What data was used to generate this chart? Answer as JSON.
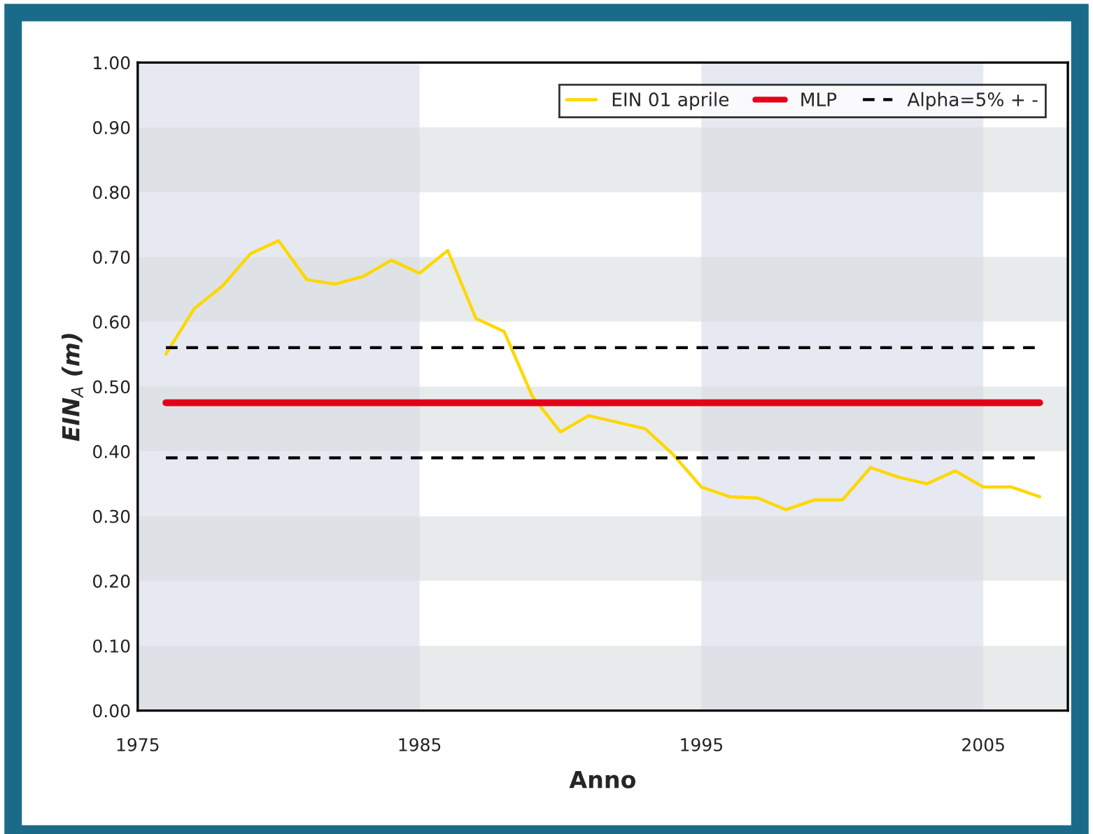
{
  "chart_data": {
    "type": "line",
    "xlabel": "Anno",
    "ylabel": "EIN$_{A}$ (m)",
    "xlim": [
      1975,
      2008
    ],
    "xticks": [
      1975,
      1985,
      1995,
      2005
    ],
    "ylim": [
      0,
      1
    ],
    "yticks": [
      {
        "value": 0,
        "label": "0.00"
      },
      {
        "value": 0.1,
        "label": "0.10"
      },
      {
        "value": 0.2,
        "label": "0.20"
      },
      {
        "value": 0.3,
        "label": "0.30"
      },
      {
        "value": 0.4,
        "label": "0.40"
      },
      {
        "value": 0.5,
        "label": "0.50"
      },
      {
        "value": 0.6,
        "label": "0.60"
      },
      {
        "value": 0.7,
        "label": "0.70"
      },
      {
        "value": 0.8,
        "label": "0.80"
      },
      {
        "value": 0.9,
        "label": "0.90"
      },
      {
        "value": 1,
        "label": "1.00"
      }
    ],
    "series": [
      {
        "name": "EIN 01 aprile",
        "color": "#ffd700",
        "line_style": "solid",
        "x": [
          1976,
          1977,
          1978,
          1979,
          1980,
          1981,
          1982,
          1983,
          1984,
          1985,
          1986,
          1987,
          1988,
          1989,
          1990,
          1991,
          1992,
          1993,
          1994,
          1995,
          1996,
          1997,
          1998,
          1999,
          2000,
          2001,
          2002,
          2003,
          2004,
          2005,
          2006,
          2007
        ],
        "values": [
          0.55,
          0.62,
          0.655,
          0.705,
          0.725,
          0.665,
          0.658,
          0.67,
          0.695,
          0.675,
          0.71,
          0.605,
          0.585,
          0.485,
          0.43,
          0.455,
          0.445,
          0.435,
          0.395,
          0.345,
          0.33,
          0.328,
          0.31,
          0.325,
          0.325,
          0.375,
          0.36,
          0.35,
          0.37,
          0.345,
          0.345,
          0.33
        ]
      },
      {
        "name": "MLP",
        "color": "#e2001a",
        "line_style": "solid",
        "x": [
          1976,
          2007
        ],
        "values": [
          0.475,
          0.475
        ]
      },
      {
        "name": "Alpha=5% + -",
        "color": "#000000",
        "line_style": "dashed",
        "x": [
          1976,
          2007
        ],
        "values": [
          0.56,
          0.56
        ]
      },
      {
        "color": "#000000",
        "line_style": "dashed",
        "x": [
          1976,
          2007
        ],
        "values": [
          0.39,
          0.39
        ]
      }
    ],
    "bands": [
      {
        "axis": "y",
        "from": 0,
        "to": 0.1,
        "color": "#d8dedf"
      },
      {
        "axis": "y",
        "from": 0.2,
        "to": 0.3,
        "color": "#d8dedf"
      },
      {
        "axis": "y",
        "from": 0.4,
        "to": 0.5,
        "color": "#d8dedf"
      },
      {
        "axis": "y",
        "from": 0.6,
        "to": 0.7,
        "color": "#d8dedf"
      },
      {
        "axis": "y",
        "from": 0.8,
        "to": 0.9,
        "color": "#d8dedf"
      },
      {
        "axis": "x",
        "from": 1975,
        "to": 1985,
        "color": "#e6e9f1"
      },
      {
        "axis": "x",
        "from": 1995,
        "to": 2005,
        "color": "#e6e9f1"
      }
    ],
    "grid": false,
    "legend": "top right"
  }
}
